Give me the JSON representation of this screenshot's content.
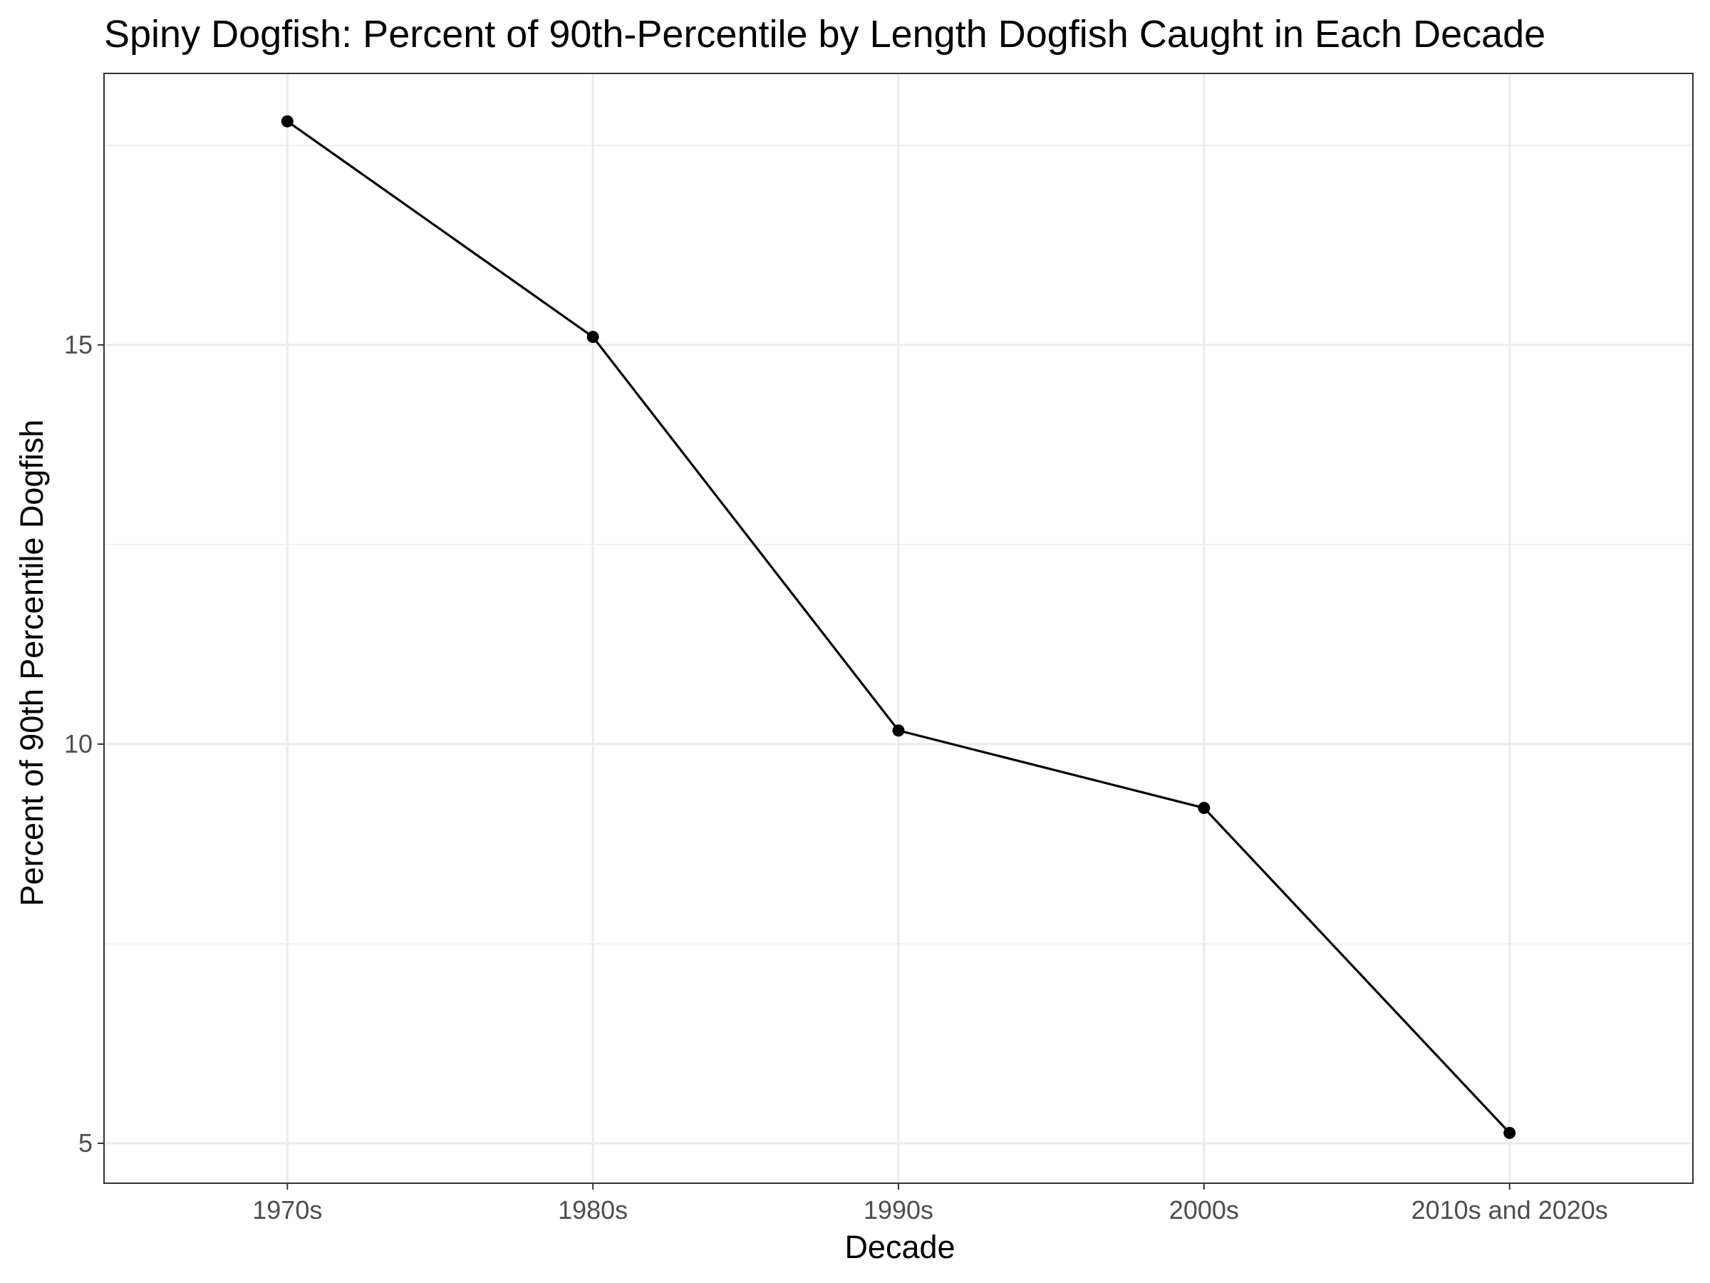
{
  "chart_data": {
    "type": "line",
    "title": "Spiny Dogfish: Percent of 90th-Percentile by Length Dogfish Caught in Each Decade",
    "xlabel": "Decade",
    "ylabel": "Percent of 90th Percentile Dogfish",
    "categories": [
      "1970s",
      "1980s",
      "1990s",
      "2000s",
      "2010s and 2020s"
    ],
    "series": [
      {
        "values": [
          17.8,
          15.1,
          10.17,
          9.2,
          5.13
        ]
      }
    ],
    "ylim": [
      4.5,
      18.4
    ],
    "yticks_major": [
      5,
      10,
      15
    ],
    "yticks_minor": [
      7.5,
      12.5,
      17.5
    ],
    "grid": true,
    "legend": "none",
    "colors": {
      "line": "#000000",
      "point": "#000000",
      "grid": "#ebebeb",
      "panel_border": "#333333",
      "tick_label": "#4d4d4d"
    }
  }
}
